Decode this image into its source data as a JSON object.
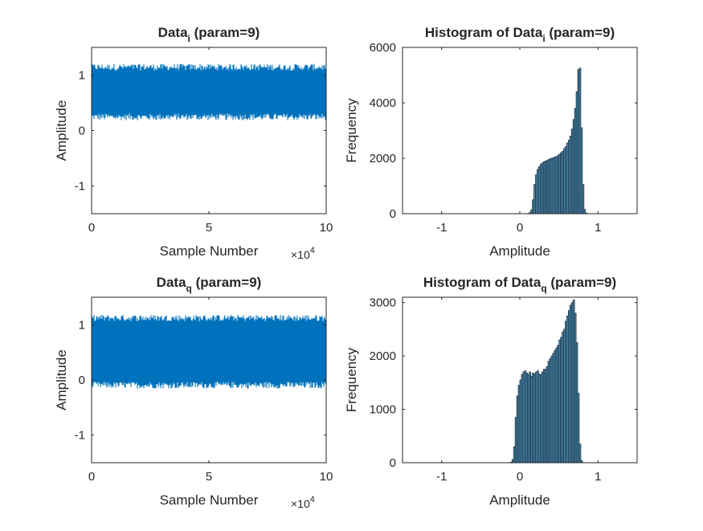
{
  "figure": {
    "background": "#ffffff",
    "axis_color": "#262626",
    "signal_color": "#0072BD",
    "bar_face_color": "#4D8FB6",
    "bar_edge_color": "#0F1E2A"
  },
  "chart_data": [
    {
      "type": "line",
      "title": "Data",
      "title_sub": "i",
      "title_suffix": " (param=9)",
      "xlabel": "Sample Number",
      "ylabel": "Amplitude",
      "xlim": [
        0,
        10
      ],
      "ylim": [
        -1.5,
        1.5
      ],
      "xticks": [
        0,
        5,
        10
      ],
      "yticks": [
        -1,
        0,
        1
      ],
      "x_exponent_label": "×10",
      "x_exponent": "4",
      "n_samples": 100000,
      "envelope": {
        "low": 0.27,
        "high": 1.12,
        "noise": 0.05
      }
    },
    {
      "type": "bar",
      "title": "Histogram of Data",
      "title_sub": "i",
      "title_suffix": " (param=9)",
      "xlabel": "Amplitude",
      "ylabel": "Frequency",
      "xlim": [
        -1.5,
        1.5
      ],
      "ylim": [
        0,
        6000
      ],
      "xticks": [
        -1,
        0,
        1
      ],
      "yticks": [
        0,
        2000,
        4000,
        6000
      ],
      "bins": {
        "start": 0.1,
        "width": 0.02,
        "counts": [
          10,
          40,
          140,
          500,
          1050,
          1400,
          1600,
          1700,
          1780,
          1830,
          1870,
          1900,
          1920,
          1950,
          1980,
          2000,
          2020,
          2040,
          2060,
          2100,
          2150,
          2200,
          2250,
          2350,
          2420,
          2550,
          2650,
          2800,
          3050,
          3400,
          3800,
          4400,
          5200,
          5250,
          3100,
          1050,
          150,
          20,
          5
        ]
      }
    },
    {
      "type": "line",
      "title": "Data",
      "title_sub": "q",
      "title_suffix": " (param=9)",
      "xlabel": "Sample Number",
      "ylabel": "Amplitude",
      "xlim": [
        0,
        10
      ],
      "ylim": [
        -1.5,
        1.5
      ],
      "xticks": [
        0,
        5,
        10
      ],
      "yticks": [
        -1,
        0,
        1
      ],
      "x_exponent_label": "×10",
      "x_exponent": "4",
      "n_samples": 100000,
      "envelope": {
        "low": -0.07,
        "high": 1.1,
        "noise": 0.05
      }
    },
    {
      "type": "bar",
      "title": "Histogram of Data",
      "title_sub": "q",
      "title_suffix": " (param=9)",
      "xlabel": "Amplitude",
      "ylabel": "Frequency",
      "xlim": [
        -1.5,
        1.5
      ],
      "ylim": [
        0,
        3100
      ],
      "xticks": [
        -1,
        0,
        1
      ],
      "yticks": [
        0,
        1000,
        2000,
        3000
      ],
      "bins": {
        "start": -0.12,
        "width": 0.02,
        "counts": [
          10,
          60,
          300,
          850,
          1250,
          1450,
          1550,
          1650,
          1700,
          1720,
          1680,
          1650,
          1700,
          1620,
          1680,
          1660,
          1700,
          1720,
          1660,
          1650,
          1700,
          1750,
          1750,
          1800,
          1900,
          1950,
          2000,
          2050,
          2100,
          2150,
          2200,
          2300,
          2350,
          2450,
          2500,
          2650,
          2750,
          2850,
          2950,
          3000,
          3050,
          2800,
          2250,
          1300,
          350,
          40,
          5
        ]
      }
    }
  ]
}
